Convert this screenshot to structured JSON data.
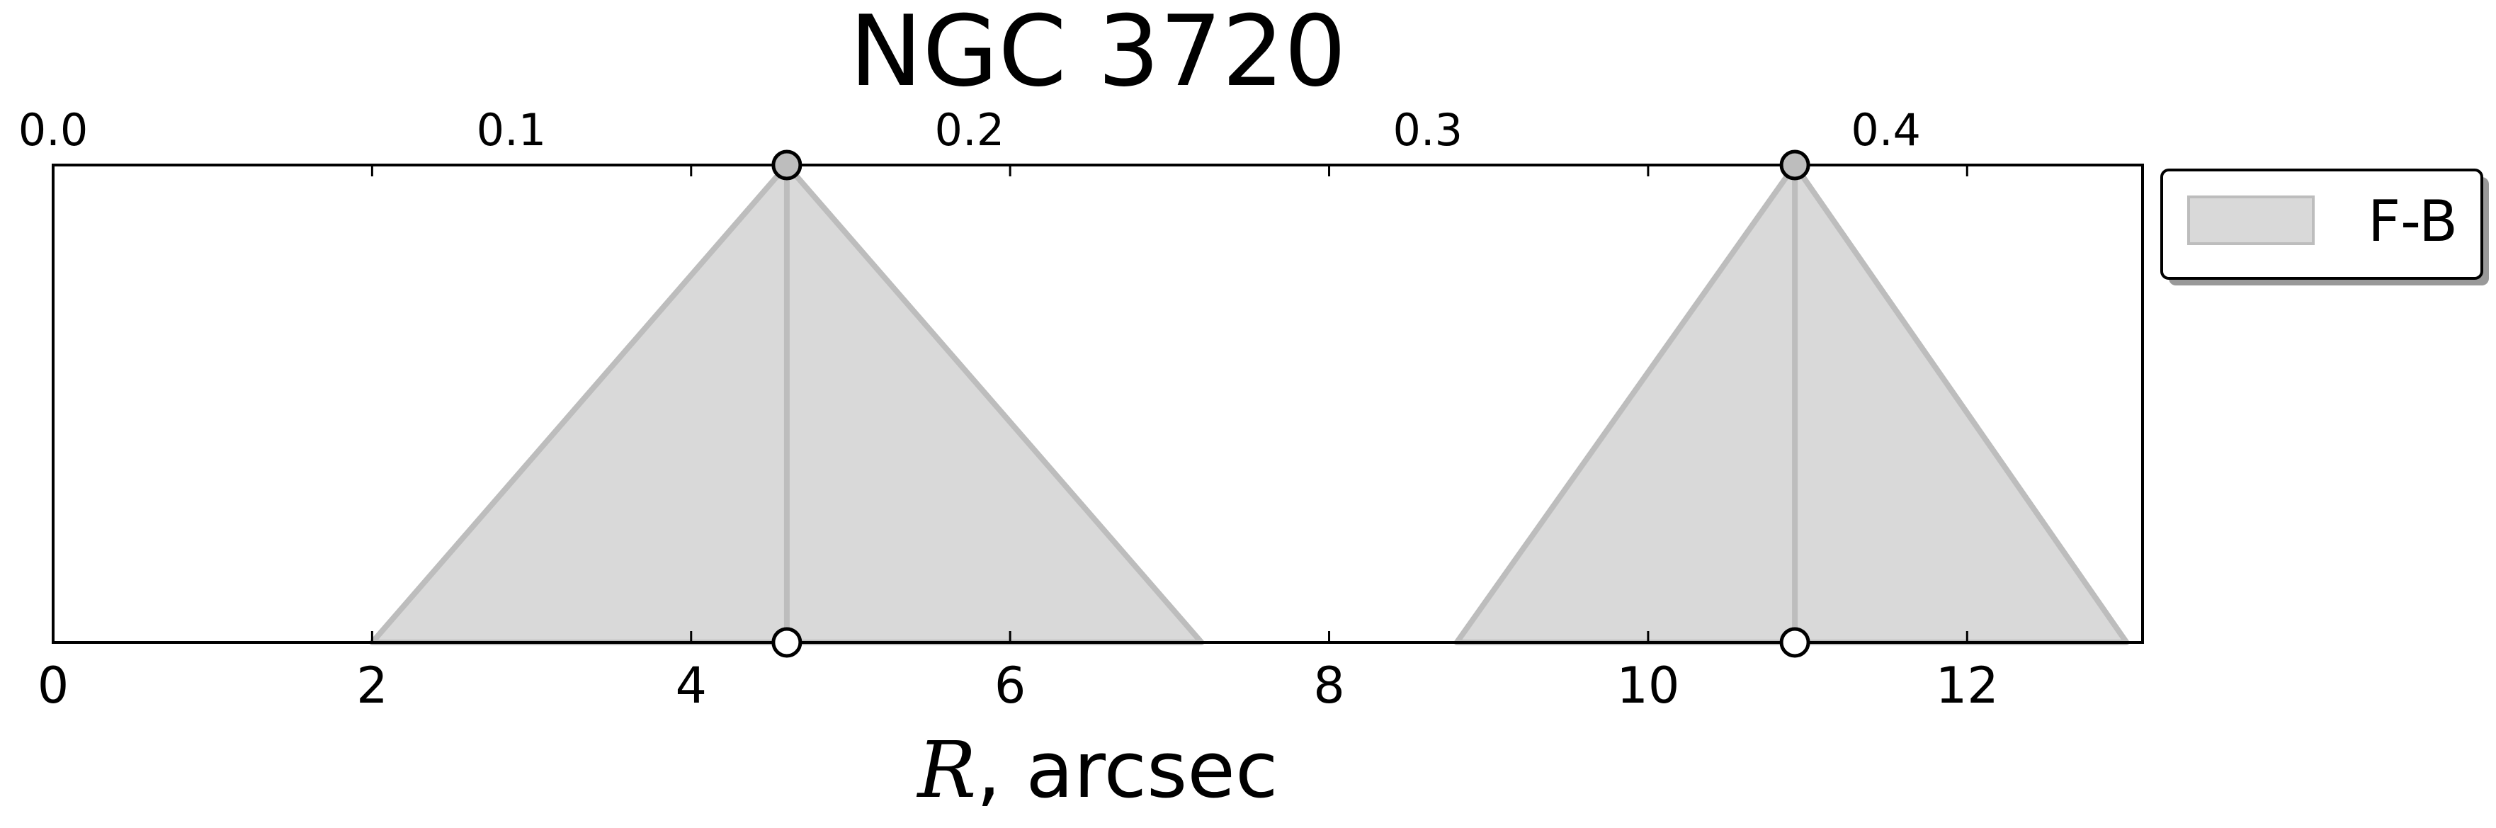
{
  "chart_data": {
    "type": "area",
    "title": "NGC 3720",
    "xlabel_var": "R",
    "xlabel_unit": ", arcsec",
    "xlim": [
      0,
      13.1
    ],
    "xticks": [
      {
        "value": 0,
        "label": "0"
      },
      {
        "value": 2,
        "label": "2"
      },
      {
        "value": 4,
        "label": "4"
      },
      {
        "value": 6,
        "label": "6"
      },
      {
        "value": 8,
        "label": "8"
      },
      {
        "value": 10,
        "label": "10"
      },
      {
        "value": 12,
        "label": "12"
      }
    ],
    "top_axis": {
      "xlim": [
        0,
        0.456
      ],
      "ticks": [
        {
          "value": 0.0,
          "label": "0.0"
        },
        {
          "value": 0.1,
          "label": "0.1"
        },
        {
          "value": 0.2,
          "label": "0.2"
        },
        {
          "value": 0.3,
          "label": "0.3"
        },
        {
          "value": 0.4,
          "label": "0.4"
        }
      ]
    },
    "ylim": [
      0,
      1
    ],
    "grid": false,
    "legend_position": "outside-right-top",
    "series": [
      {
        "name": "F-B",
        "color": "#d9d9d9",
        "edge_color": "#bdbdbd",
        "regions": [
          {
            "left": 2.0,
            "peak": 4.6,
            "right": 7.2
          },
          {
            "left": 8.8,
            "peak": 10.92,
            "right": 13.0
          }
        ]
      }
    ]
  }
}
